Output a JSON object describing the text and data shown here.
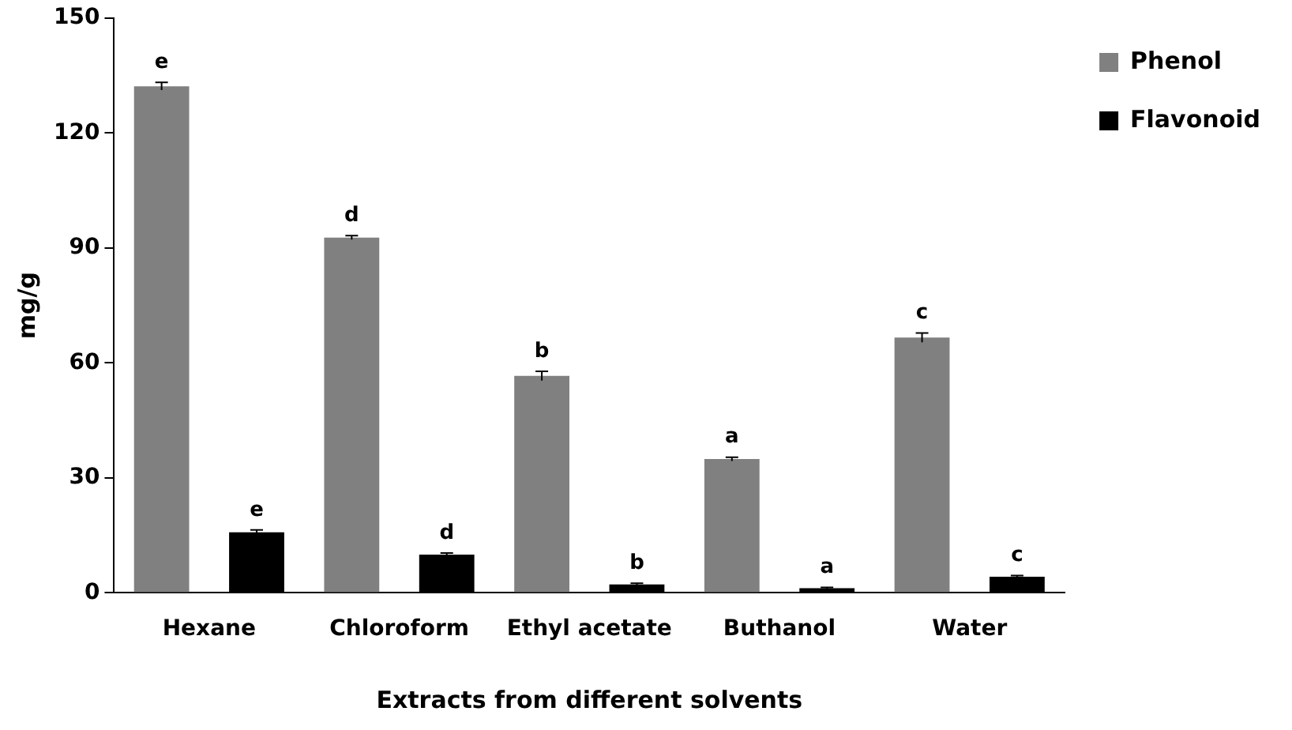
{
  "chart_data": {
    "type": "bar",
    "xlabel": "Extracts from different solvents",
    "ylabel": "mg/g",
    "categories": [
      "Hexane",
      "Chloroform",
      "Ethyl acetate",
      "Buthanol",
      "Water"
    ],
    "series": [
      {
        "name": "Phenol",
        "color": "#808080",
        "values": [
          132.2,
          92.7,
          56.6,
          34.9,
          66.6
        ],
        "errors": [
          1,
          0.5,
          1.2,
          0.5,
          1.2
        ],
        "value_labels": [
          "e",
          "d",
          "b",
          "a",
          "c"
        ]
      },
      {
        "name": "Flavonoid",
        "color": "#000000",
        "values": [
          15.8,
          10,
          2.2,
          1.2,
          4.2
        ],
        "errors": [
          0.6,
          0.4,
          0.3,
          0.2,
          0.3
        ],
        "value_labels": [
          "e",
          "d",
          "b",
          "a",
          "c"
        ]
      }
    ],
    "ylim": [
      0,
      150
    ],
    "yticks": [
      0,
      30,
      60,
      90,
      120,
      150
    ],
    "grid": false,
    "legend": "top right"
  }
}
